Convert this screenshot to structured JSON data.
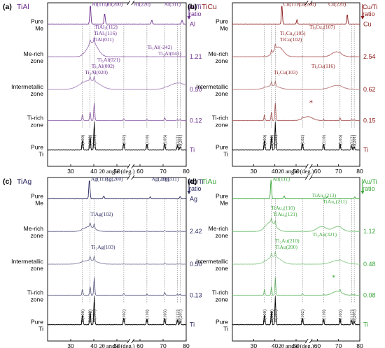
{
  "panels": [
    {
      "letter": "(a)",
      "title": "TiAl",
      "color": "#6a2c8c",
      "ratio_header": [
        "Al/Ti",
        "ratio"
      ],
      "rows": [
        {
          "name": [
            "Pure",
            "Me"
          ],
          "ratio": "Al"
        },
        {
          "name": [
            "Me-rich",
            "zone"
          ],
          "ratio": "1.21"
        },
        {
          "name": [
            "Intermetallic",
            "zone"
          ],
          "ratio": "0.50"
        },
        {
          "name": [
            "Ti-rich",
            "zone"
          ],
          "ratio": "0.12"
        },
        {
          "name": [
            "Pure",
            "Ti"
          ],
          "ratio": "Ti"
        }
      ],
      "peak_labels": [
        {
          "text": "Al(111)",
          "x": 38.5,
          "row": 0
        },
        {
          "text": "Al(200)",
          "x": 44.7,
          "row": 0
        },
        {
          "text": "Al(220)",
          "x": 65.1,
          "row": 0
        },
        {
          "text": "Al(311)",
          "x": 78.2,
          "row": 0
        },
        {
          "text": "TiAl(011)",
          "x": 39.0,
          "row": 1
        },
        {
          "text": "TiAl₃(116)",
          "x": 39.5,
          "row": 1
        },
        {
          "text": "TiAl₃(112)",
          "x": 39.8,
          "row": 1
        },
        {
          "text": "Ti₃Al(020)",
          "x": 35.5,
          "row": 2
        },
        {
          "text": "Ti₃Al(002)",
          "x": 38.4,
          "row": 2
        },
        {
          "text": "Ti₃Al(021)",
          "x": 40.9,
          "row": 2
        },
        {
          "text": "Ti₃Al(041)",
          "x": 78.5,
          "row": 2
        },
        {
          "text": "Ti₃Al(-242)",
          "x": 74.5,
          "row": 2
        }
      ]
    },
    {
      "letter": "(b)",
      "title": "TiCu",
      "color": "#8b1a1a",
      "ratio_header": [
        "Cu/Ti",
        "ratio"
      ],
      "rows": [
        {
          "name": [
            "Pure",
            "Me"
          ],
          "ratio": "Cu"
        },
        {
          "name": [
            "Me-rich",
            "zone"
          ],
          "ratio": "2.54"
        },
        {
          "name": [
            "Intermetallic",
            "zone"
          ],
          "ratio": "0.62"
        },
        {
          "name": [
            "Ti-rich",
            "zone"
          ],
          "ratio": "0.15"
        },
        {
          "name": [
            "Pure",
            "Ti"
          ],
          "ratio": "Ti"
        }
      ],
      "peak_labels": [
        {
          "text": "Cu(111)",
          "x": 43.3,
          "row": 0
        },
        {
          "text": "Cu(200)",
          "x": 50.4,
          "row": 0
        },
        {
          "text": "Cu(220)",
          "x": 74.1,
          "row": 0
        },
        {
          "text": "TiCu(102)",
          "x": 41.7,
          "row": 1
        },
        {
          "text": "Ti₃Cu₄(105)",
          "x": 41.7,
          "row": 1
        },
        {
          "text": "Ti₃Cu₄(107)",
          "x": 69.0,
          "row": 1
        },
        {
          "text": "Ti₂Cu(103)",
          "x": 38.8,
          "row": 2
        },
        {
          "text": "Ti₂Cu(116)",
          "x": 69.0,
          "row": 2
        },
        {
          "text": "*",
          "x": 55.5,
          "row": 3
        }
      ]
    },
    {
      "letter": "(c)",
      "title": "TiAg",
      "color": "#28285f",
      "ratio_header": [
        "Ag/Ti",
        "ratio"
      ],
      "rows": [
        {
          "name": [
            "Pure",
            "Me"
          ],
          "ratio": "Ag"
        },
        {
          "name": [
            "Me-rich",
            "zone"
          ],
          "ratio": "2.42"
        },
        {
          "name": [
            "Intermetallic",
            "zone"
          ],
          "ratio": "0.50"
        },
        {
          "name": [
            "Ti-rich",
            "zone"
          ],
          "ratio": "0.13"
        },
        {
          "name": [
            "Pure",
            "Ti"
          ],
          "ratio": "Ti"
        }
      ],
      "peak_labels": [
        {
          "text": "Ag(111)",
          "x": 38.1,
          "row": 0
        },
        {
          "text": "Ag(200)",
          "x": 44.3,
          "row": 0
        },
        {
          "text": "Ag(220)",
          "x": 64.4,
          "row": 0
        },
        {
          "text": "Ag(311)",
          "x": 77.4,
          "row": 0
        },
        {
          "text": "TiAg(102)",
          "x": 38.0,
          "row": 1
        },
        {
          "text": "Ti₂Ag(103)",
          "x": 38.2,
          "row": 2
        }
      ]
    },
    {
      "letter": "(d)",
      "title": "TiAu",
      "color": "#3aa63a",
      "ratio_header": [
        "Au/Ti",
        "ratio"
      ],
      "rows": [
        {
          "name": [
            "Pure",
            "Me"
          ],
          "ratio": ""
        },
        {
          "name": [
            "Me-rich",
            "zone"
          ],
          "ratio": "1.12"
        },
        {
          "name": [
            "Intermetallic",
            "zone"
          ],
          "ratio": "0.48"
        },
        {
          "name": [
            "Ti-rich",
            "zone"
          ],
          "ratio": "0.08"
        },
        {
          "name": [
            "Pure",
            "Ti"
          ],
          "ratio": "Ti"
        }
      ],
      "peak_labels": [
        {
          "text": "Au(111)",
          "x": 38.2,
          "row": 0
        },
        {
          "text": "TiAu₄(121)",
          "x": 38.5,
          "row": 1
        },
        {
          "text": "TiAu₄(110)",
          "x": 37.5,
          "row": 1
        },
        {
          "text": "TiAu₄(211)",
          "x": 62.0,
          "row": 1
        },
        {
          "text": "TiAu₄(213)",
          "x": 69.5,
          "row": 1
        },
        {
          "text": "TiAu(200)",
          "x": 39.5,
          "row": 2
        },
        {
          "text": "Ti₃Au(210)",
          "x": 39.5,
          "row": 2
        },
        {
          "text": "Ti₃Au(321)",
          "x": 69.8,
          "row": 2
        },
        {
          "text": "*",
          "x": 69.3,
          "row": 3
        }
      ]
    }
  ],
  "chart_data": {
    "type": "line",
    "xlabel": "2θ angle (deg.)",
    "xlim": [
      20,
      80
    ],
    "x_ticks": [
      30,
      40,
      50,
      60,
      70,
      80
    ],
    "axis_break": true,
    "ti_reference_peaks": [
      {
        "label": "Ti(100)",
        "x": 35.1
      },
      {
        "label": "Ti(002)",
        "x": 38.4
      },
      {
        "label": "Ti(101)",
        "x": 40.2
      },
      {
        "label": "Ti(102)",
        "x": 53.0
      },
      {
        "label": "Ti(110)",
        "x": 63.0
      },
      {
        "label": "Ti(103)",
        "x": 70.7
      },
      {
        "label": "Ti(112)",
        "x": 76.2
      },
      {
        "label": "Ti(201)",
        "x": 77.4
      }
    ],
    "metal_peaks": {
      "TiAl": [
        {
          "x": 38.5,
          "h": 1.0
        },
        {
          "x": 44.7,
          "h": 0.55
        },
        {
          "x": 65.1,
          "h": 0.2
        },
        {
          "x": 78.2,
          "h": 0.2
        }
      ],
      "TiCu": [
        {
          "x": 43.3,
          "h": 1.0
        },
        {
          "x": 50.4,
          "h": 0.22
        },
        {
          "x": 74.1,
          "h": 0.5
        }
      ],
      "TiAg": [
        {
          "x": 38.1,
          "h": 1.0
        },
        {
          "x": 44.3,
          "h": 0.15
        },
        {
          "x": 64.4,
          "h": 0.1
        },
        {
          "x": 77.4,
          "h": 0.12
        }
      ],
      "TiAu": [
        {
          "x": 38.2,
          "h": 1.0
        },
        {
          "x": 44.4,
          "h": 0.15
        },
        {
          "x": 64.6,
          "h": 0.1
        },
        {
          "x": 77.6,
          "h": 0.1
        }
      ]
    }
  }
}
